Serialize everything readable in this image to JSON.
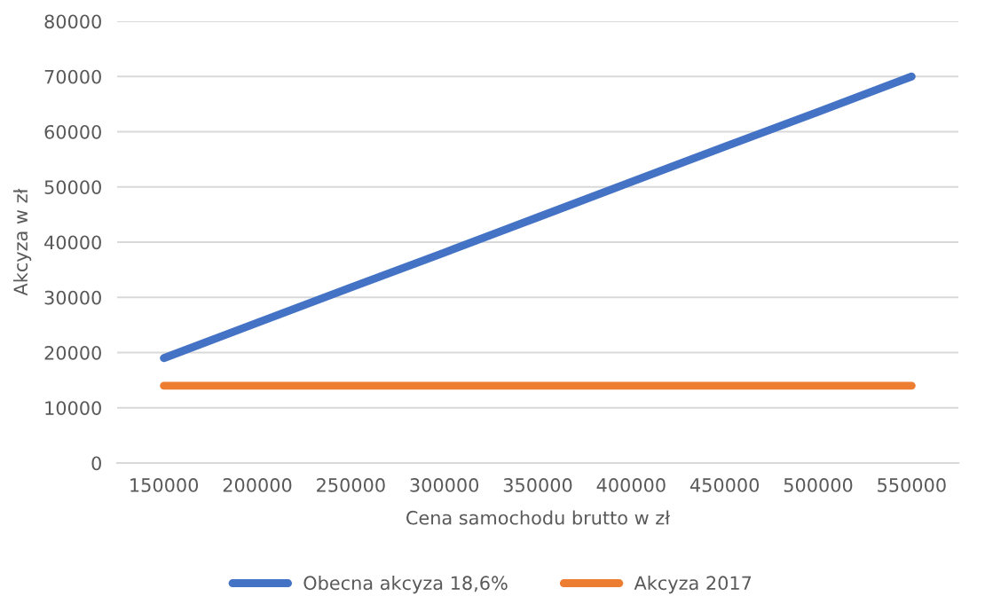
{
  "chart_data": {
    "type": "line",
    "xlabel": "Cena samochodu brutto w zł",
    "ylabel": "Akcyza w zł",
    "categories": [
      "150000",
      "200000",
      "250000",
      "300000",
      "350000",
      "400000",
      "450000",
      "500000",
      "550000"
    ],
    "series": [
      {
        "name": "Obecna akcyza 18,6%",
        "color": "#4472c4",
        "values": [
          19000,
          25400,
          31800,
          38100,
          44500,
          50900,
          57300,
          63600,
          70000
        ]
      },
      {
        "name": "Akcyza 2017",
        "color": "#ed7d31",
        "values": [
          14000,
          14000,
          14000,
          14000,
          14000,
          14000,
          14000,
          14000,
          14000
        ]
      }
    ],
    "ylim": [
      0,
      80000
    ],
    "yticks": [
      0,
      10000,
      20000,
      30000,
      40000,
      50000,
      60000,
      70000,
      80000
    ],
    "grid": "y",
    "legend": "bottom",
    "marker": "none",
    "line_style": "solid"
  }
}
